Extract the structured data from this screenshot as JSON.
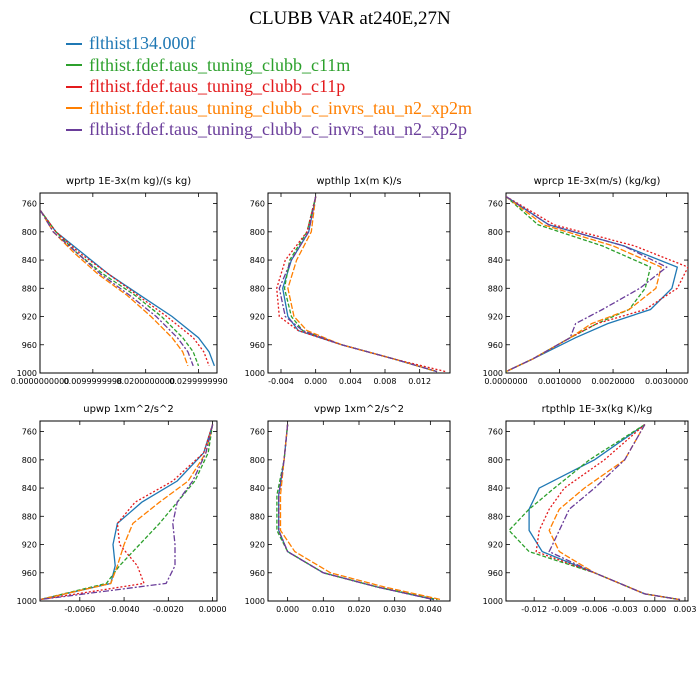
{
  "title": "CLUBB VAR at240E,27N",
  "legend": [
    {
      "label": "flthist134.000f",
      "color": "#1f78b4"
    },
    {
      "label": "flthist.fdef.taus_tuning_clubb_c11m",
      "color": "#2ca02c"
    },
    {
      "label": "flthist.fdef.taus_tuning_clubb_c11p",
      "color": "#e31a1c"
    },
    {
      "label": "flthist.fdef.taus_tuning_clubb_c_invrs_tau_n2_xp2m",
      "color": "#ff7f00"
    },
    {
      "label": "flthist.fdef.taus_tuning_clubb_c_invrs_tau_n2_xp2p",
      "color": "#6a3d9a"
    }
  ],
  "chart_data": [
    {
      "type": "line",
      "title": "wprtp  1E-3x(m kg)/(s kg)",
      "xlim": [
        0,
        0.0335
      ],
      "ylim": [
        1000,
        745
      ],
      "xticks": [
        0,
        0.01,
        0.02,
        0.03
      ],
      "xtick_labels": [
        "0.0000000000",
        "0.0099999998",
        "0.0200000000",
        "0.0299999990"
      ],
      "yticks": [
        760,
        800,
        840,
        880,
        920,
        960,
        1000
      ],
      "series": [
        {
          "x": [
            0.0001,
            0.003,
            0.008,
            0.013,
            0.019,
            0.025,
            0.03,
            0.032,
            0.033
          ],
          "y": [
            770,
            800,
            830,
            860,
            890,
            920,
            950,
            970,
            990
          ]
        },
        {
          "x": [
            0.0001,
            0.003,
            0.007,
            0.012,
            0.018,
            0.023,
            0.027,
            0.029,
            0.03
          ],
          "y": [
            770,
            800,
            830,
            860,
            890,
            920,
            950,
            970,
            990
          ]
        },
        {
          "x": [
            0.0001,
            0.003,
            0.0075,
            0.013,
            0.0185,
            0.024,
            0.029,
            0.031,
            0.032
          ],
          "y": [
            770,
            800,
            830,
            860,
            890,
            920,
            950,
            970,
            990
          ]
        },
        {
          "x": [
            0.0001,
            0.0025,
            0.0065,
            0.011,
            0.0165,
            0.021,
            0.025,
            0.027,
            0.028
          ],
          "y": [
            770,
            800,
            830,
            860,
            890,
            920,
            950,
            970,
            990
          ]
        },
        {
          "x": [
            0.0001,
            0.0025,
            0.007,
            0.0115,
            0.017,
            0.022,
            0.026,
            0.028,
            0.029
          ],
          "y": [
            770,
            800,
            830,
            860,
            890,
            920,
            950,
            970,
            990
          ]
        }
      ]
    },
    {
      "type": "line",
      "title": "wpthlp  1x(m K)/s",
      "xlim": [
        -0.0055,
        0.0155
      ],
      "ylim": [
        1000,
        745
      ],
      "xticks": [
        -0.004,
        0,
        0.004,
        0.008,
        0.012
      ],
      "xtick_labels": [
        "-0.004",
        "0.000",
        "0.004",
        "0.008",
        "0.012"
      ],
      "yticks": [
        760,
        800,
        840,
        880,
        920,
        960,
        1000
      ],
      "series": [
        {
          "x": [
            0,
            -0.0008,
            -0.0028,
            -0.0038,
            -0.0032,
            -0.002,
            0.003,
            0.009,
            0.014
          ],
          "y": [
            750,
            800,
            840,
            880,
            920,
            940,
            960,
            980,
            998
          ]
        },
        {
          "x": [
            0,
            -0.001,
            -0.003,
            -0.0036,
            -0.0028,
            -0.0015,
            0.003,
            0.009,
            0.014
          ],
          "y": [
            750,
            800,
            840,
            880,
            920,
            940,
            960,
            980,
            998
          ]
        },
        {
          "x": [
            0,
            -0.001,
            -0.0035,
            -0.0045,
            -0.0042,
            -0.002,
            0.003,
            0.009,
            0.015
          ],
          "y": [
            750,
            800,
            840,
            880,
            920,
            940,
            960,
            980,
            998
          ]
        },
        {
          "x": [
            0,
            -0.0005,
            -0.0022,
            -0.0032,
            -0.0025,
            -0.001,
            0.003,
            0.009,
            0.014
          ],
          "y": [
            750,
            800,
            840,
            880,
            920,
            940,
            960,
            980,
            998
          ]
        },
        {
          "x": [
            0,
            -0.0008,
            -0.0028,
            -0.0042,
            -0.0035,
            -0.0015,
            0.003,
            0.009,
            0.014
          ],
          "y": [
            750,
            800,
            840,
            880,
            920,
            940,
            960,
            980,
            998
          ]
        }
      ]
    },
    {
      "type": "line",
      "title": "wprcp  1E-3x(m/s) (kg/kg)",
      "xlim": [
        0,
        0.0034
      ],
      "ylim": [
        1000,
        745
      ],
      "xticks": [
        0,
        0.001,
        0.002,
        0.003
      ],
      "xtick_labels": [
        "0.0000000",
        "0.0010000",
        "0.0020000",
        "0.0030000"
      ],
      "yticks": [
        760,
        800,
        840,
        880,
        920,
        960,
        1000
      ],
      "series": [
        {
          "x": [
            0,
            0.0008,
            0.0022,
            0.0032,
            0.0031,
            0.0027,
            0.0019,
            0.0013,
            0.0005,
            0
          ],
          "y": [
            750,
            790,
            820,
            850,
            880,
            910,
            930,
            950,
            980,
            998
          ]
        },
        {
          "x": [
            0,
            0.0006,
            0.0018,
            0.0027,
            0.0026,
            0.0023,
            0.0017,
            0.0012,
            0.0005,
            0
          ],
          "y": [
            750,
            790,
            820,
            850,
            880,
            910,
            930,
            950,
            980,
            998
          ]
        },
        {
          "x": [
            0,
            0.0009,
            0.0024,
            0.0034,
            0.0032,
            0.0026,
            0.0017,
            0.0012,
            0.0005,
            0
          ],
          "y": [
            750,
            790,
            820,
            850,
            880,
            910,
            930,
            950,
            980,
            998
          ]
        },
        {
          "x": [
            0,
            0.0007,
            0.002,
            0.0029,
            0.0028,
            0.0023,
            0.0016,
            0.0012,
            0.0005,
            0
          ],
          "y": [
            750,
            790,
            820,
            850,
            880,
            910,
            930,
            950,
            980,
            998
          ]
        },
        {
          "x": [
            0,
            0.0008,
            0.0022,
            0.003,
            0.0025,
            0.0018,
            0.0013,
            0.0012,
            0.0005,
            0
          ],
          "y": [
            750,
            790,
            820,
            850,
            880,
            910,
            930,
            950,
            980,
            998
          ]
        }
      ]
    },
    {
      "type": "line",
      "title": "upwp  1xm^2/s^2",
      "xlim": [
        -0.0078,
        0.0002
      ],
      "ylim": [
        1000,
        745
      ],
      "xticks": [
        -0.006,
        -0.004,
        -0.002,
        0
      ],
      "xtick_labels": [
        "-0.0060",
        "-0.0040",
        "-0.0020",
        "0.0000"
      ],
      "yticks": [
        760,
        800,
        840,
        880,
        920,
        960,
        1000
      ],
      "series": [
        {
          "x": [
            0,
            -0.0004,
            -0.0016,
            -0.0032,
            -0.0043,
            -0.0045,
            -0.0044,
            -0.0046,
            -0.0078
          ],
          "y": [
            750,
            790,
            830,
            860,
            890,
            920,
            950,
            975,
            998
          ]
        },
        {
          "x": [
            0,
            -0.0002,
            -0.0008,
            -0.0016,
            -0.0024,
            -0.0033,
            -0.0042,
            -0.0048,
            -0.0078
          ],
          "y": [
            750,
            790,
            830,
            860,
            890,
            920,
            950,
            975,
            998
          ]
        },
        {
          "x": [
            0,
            -0.0004,
            -0.0018,
            -0.0035,
            -0.0043,
            -0.0042,
            -0.0034,
            -0.0031,
            -0.0078
          ],
          "y": [
            750,
            790,
            830,
            860,
            890,
            920,
            950,
            975,
            998
          ]
        },
        {
          "x": [
            0,
            -0.0003,
            -0.0011,
            -0.0024,
            -0.0036,
            -0.004,
            -0.0043,
            -0.0046,
            -0.0078
          ],
          "y": [
            750,
            790,
            830,
            860,
            890,
            920,
            950,
            975,
            998
          ]
        },
        {
          "x": [
            0,
            -0.0003,
            -0.0009,
            -0.0016,
            -0.0018,
            -0.0017,
            -0.0017,
            -0.0021,
            -0.0078
          ],
          "y": [
            750,
            790,
            830,
            860,
            890,
            920,
            950,
            975,
            998
          ]
        }
      ]
    },
    {
      "type": "line",
      "title": "vpwp  1xm^2/s^2",
      "xlim": [
        -0.0055,
        0.0455
      ],
      "ylim": [
        1000,
        745
      ],
      "xticks": [
        0,
        0.01,
        0.02,
        0.03,
        0.04
      ],
      "xtick_labels": [
        "0.000",
        "0.010",
        "0.020",
        "0.030",
        "0.040"
      ],
      "yticks": [
        760,
        800,
        840,
        880,
        920,
        960,
        1000
      ],
      "series": [
        {
          "x": [
            0,
            -0.001,
            -0.0025,
            -0.0025,
            0,
            0.01,
            0.025,
            0.041
          ],
          "y": [
            750,
            800,
            850,
            900,
            930,
            960,
            980,
            998
          ]
        },
        {
          "x": [
            0,
            -0.001,
            -0.003,
            -0.003,
            0,
            0.01,
            0.025,
            0.042
          ],
          "y": [
            750,
            800,
            850,
            900,
            930,
            960,
            980,
            998
          ]
        },
        {
          "x": [
            0,
            -0.001,
            -0.0025,
            -0.0025,
            0,
            0.01,
            0.025,
            0.041
          ],
          "y": [
            750,
            800,
            850,
            900,
            930,
            960,
            980,
            998
          ]
        },
        {
          "x": [
            0,
            -0.001,
            -0.002,
            -0.002,
            0.002,
            0.012,
            0.027,
            0.043
          ],
          "y": [
            750,
            800,
            850,
            900,
            930,
            960,
            980,
            998
          ]
        },
        {
          "x": [
            0,
            -0.001,
            -0.0025,
            -0.0025,
            0,
            0.01,
            0.025,
            0.041
          ],
          "y": [
            750,
            800,
            850,
            900,
            930,
            960,
            980,
            998
          ]
        }
      ]
    },
    {
      "type": "line",
      "title": "rtpthlp  1E-3x(kg K)/kg",
      "xlim": [
        -0.0148,
        0.0033
      ],
      "ylim": [
        1000,
        745
      ],
      "xticks": [
        -0.012,
        -0.009,
        -0.006,
        -0.003,
        0,
        0.003
      ],
      "xtick_labels": [
        "-0.012",
        "-0.009",
        "-0.006",
        "-0.003",
        "0.000",
        "0.003"
      ],
      "yticks": [
        760,
        800,
        840,
        880,
        920,
        960,
        1000
      ],
      "series": [
        {
          "x": [
            -0.001,
            -0.006,
            -0.0115,
            -0.0125,
            -0.0125,
            -0.0112,
            -0.006,
            -0.001,
            0.0025
          ],
          "y": [
            750,
            800,
            840,
            870,
            900,
            930,
            960,
            990,
            998
          ]
        },
        {
          "x": [
            -0.001,
            -0.0065,
            -0.01,
            -0.0125,
            -0.0145,
            -0.0125,
            -0.006,
            -0.001,
            0.0025
          ],
          "y": [
            750,
            800,
            840,
            870,
            900,
            930,
            960,
            990,
            998
          ]
        },
        {
          "x": [
            -0.001,
            -0.005,
            -0.009,
            -0.0105,
            -0.0115,
            -0.0118,
            -0.006,
            -0.001,
            0.0025
          ],
          "y": [
            750,
            800,
            840,
            870,
            900,
            930,
            960,
            990,
            998
          ]
        },
        {
          "x": [
            -0.001,
            -0.003,
            -0.007,
            -0.0095,
            -0.0105,
            -0.0095,
            -0.006,
            -0.001,
            0.0025
          ],
          "y": [
            750,
            800,
            840,
            870,
            900,
            930,
            960,
            990,
            998
          ]
        },
        {
          "x": [
            -0.001,
            -0.003,
            -0.006,
            -0.0085,
            -0.0095,
            -0.0105,
            -0.006,
            -0.001,
            0.0025
          ],
          "y": [
            750,
            800,
            840,
            870,
            900,
            930,
            960,
            990,
            998
          ]
        }
      ]
    }
  ]
}
